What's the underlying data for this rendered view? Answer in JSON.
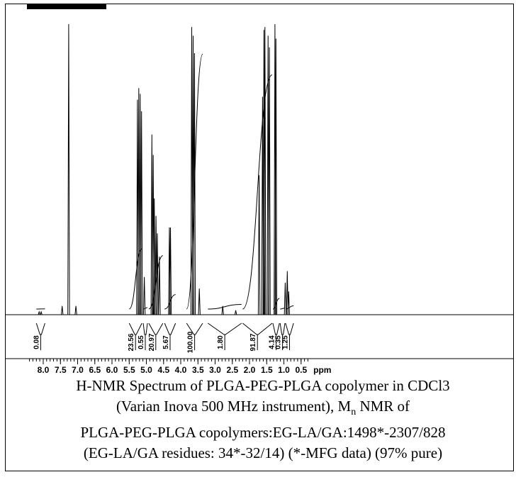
{
  "chart_data": {
    "type": "line",
    "xlabel": "ppm",
    "xlim": [
      8.45,
      0.25
    ],
    "x_axis_reversed": true,
    "ticks_major": [
      8.0,
      7.5,
      7.0,
      6.5,
      6.0,
      5.5,
      5.0,
      4.5,
      4.0,
      3.5,
      3.0,
      2.5,
      2.0,
      1.5,
      1.0,
      0.5
    ],
    "tick_labels": [
      "8.0",
      "7.5",
      "7.0",
      "6.5",
      "6.0",
      "5.5",
      "5.0",
      "4.5",
      "4.0",
      "3.5",
      "3.0",
      "2.5",
      "2.0",
      "1.5",
      "1.0",
      "0.5"
    ],
    "tick_minor_step": 0.1,
    "peaks": [
      {
        "ppm": 8.12,
        "height": 0.01
      },
      {
        "ppm": 8.06,
        "height": 0.01
      },
      {
        "ppm": 7.45,
        "height": 0.03
      },
      {
        "ppm": 7.26,
        "height": 1.0
      },
      {
        "ppm": 7.05,
        "height": 0.03
      },
      {
        "ppm": 5.26,
        "height": 0.74
      },
      {
        "ppm": 5.22,
        "height": 0.78
      },
      {
        "ppm": 5.18,
        "height": 0.76
      },
      {
        "ppm": 5.14,
        "height": 0.7
      },
      {
        "ppm": 5.06,
        "height": 0.13
      },
      {
        "ppm": 4.84,
        "height": 0.62
      },
      {
        "ppm": 4.8,
        "height": 0.55
      },
      {
        "ppm": 4.77,
        "height": 0.4
      },
      {
        "ppm": 4.72,
        "height": 0.34
      },
      {
        "ppm": 4.68,
        "height": 0.28
      },
      {
        "ppm": 4.62,
        "height": 0.2
      },
      {
        "ppm": 4.33,
        "height": 0.3
      },
      {
        "ppm": 4.3,
        "height": 0.3
      },
      {
        "ppm": 3.68,
        "height": 0.99
      },
      {
        "ppm": 3.64,
        "height": 0.96
      },
      {
        "ppm": 3.6,
        "height": 0.9
      },
      {
        "ppm": 3.46,
        "height": 0.09
      },
      {
        "ppm": 2.78,
        "height": 0.03
      },
      {
        "ppm": 2.4,
        "height": 0.015
      },
      {
        "ppm": 1.72,
        "height": 0.48
      },
      {
        "ppm": 1.62,
        "height": 0.75
      },
      {
        "ppm": 1.58,
        "height": 0.98
      },
      {
        "ppm": 1.55,
        "height": 0.99
      },
      {
        "ppm": 1.46,
        "height": 0.96
      },
      {
        "ppm": 1.42,
        "height": 0.92
      },
      {
        "ppm": 1.26,
        "height": 1.0
      },
      {
        "ppm": 1.23,
        "height": 0.95
      },
      {
        "ppm": 0.96,
        "height": 0.11
      },
      {
        "ppm": 0.9,
        "height": 0.15
      },
      {
        "ppm": 0.86,
        "height": 0.08
      }
    ],
    "integrals": [
      {
        "label": "0.08",
        "from": 8.2,
        "to": 7.95
      },
      {
        "label": "23.56",
        "from": 5.5,
        "to": 5.13
      },
      {
        "label": "0.55",
        "from": 5.09,
        "to": 4.97
      },
      {
        "label": "20.97",
        "from": 4.93,
        "to": 4.52
      },
      {
        "label": "5.67",
        "from": 4.47,
        "to": 4.15
      },
      {
        "label": "100.00",
        "from": 3.83,
        "to": 3.36
      },
      {
        "label": "1.80",
        "from": 3.21,
        "to": 2.23
      },
      {
        "label": "91.87",
        "from": 2.2,
        "to": 1.34
      },
      {
        "label": "4.14",
        "from": 1.32,
        "to": 1.13
      },
      {
        "label": "0.35",
        "from": 1.11,
        "to": 0.97
      },
      {
        "label": "1.25",
        "from": 0.95,
        "to": 0.72
      }
    ]
  },
  "caption": {
    "line1": "H-NMR Spectrum of PLGA-PEG-PLGA copolymer in CDCl3",
    "line2": "(Varian Inova 500 MHz instrument), M",
    "line2_sub": "n",
    "line2_end": " NMR of",
    "line3": "PLGA-PEG-PLGA copolymers:EG-LA/GA:1498*-2307/828",
    "line4": "(EG-LA/GA residues: 34*-32/14) (*-MFG data) (97% pure)"
  }
}
